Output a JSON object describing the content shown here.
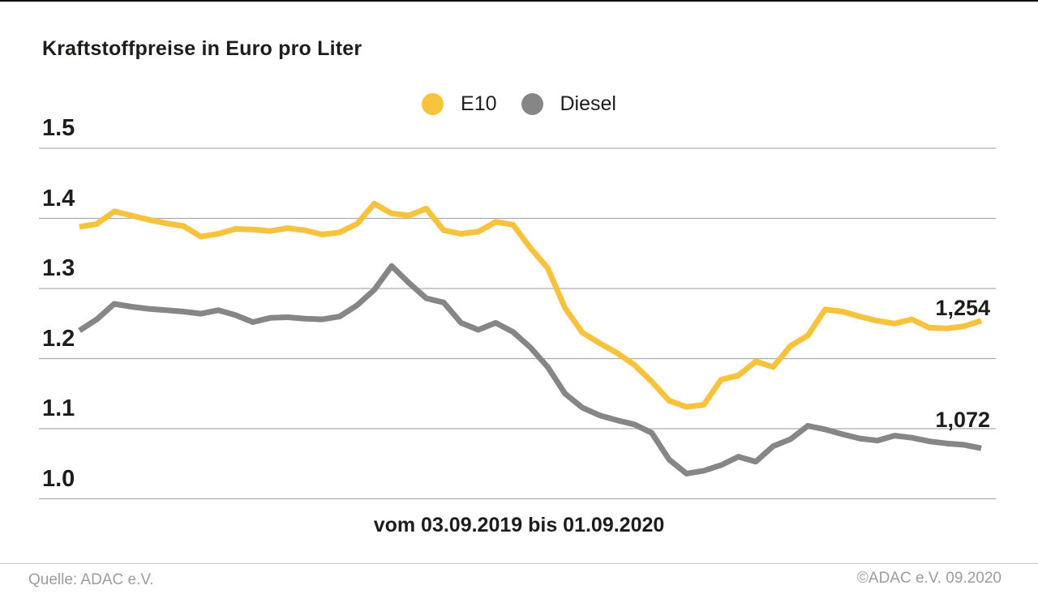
{
  "header": {
    "title": "Kraftstoffpreise in Euro pro Liter"
  },
  "legend": {
    "items": [
      {
        "label": "E10",
        "color": "#F7C23C"
      },
      {
        "label": "Diesel",
        "color": "#868686"
      }
    ]
  },
  "chart_data": {
    "type": "line",
    "title": "Kraftstoffpreise in Euro pro Liter",
    "x_caption": "vom 03.09.2019 bis 01.09.2020",
    "ylabel": "Euro pro Liter",
    "ylim": [
      0.95,
      1.55
    ],
    "grid": true,
    "legend_position": "top-center",
    "yticks": [
      {
        "label": "1.5",
        "value": 1.5
      },
      {
        "label": "1.4",
        "value": 1.4
      },
      {
        "label": "1.3",
        "value": 1.3
      },
      {
        "label": "1.2",
        "value": 1.2
      },
      {
        "label": "1.1",
        "value": 1.1
      },
      {
        "label": "1.0",
        "value": 1.0
      }
    ],
    "series": [
      {
        "name": "E10",
        "color": "#F7C23C",
        "end_label": "1,254",
        "values": [
          1.388,
          1.392,
          1.41,
          1.404,
          1.398,
          1.393,
          1.389,
          1.374,
          1.378,
          1.385,
          1.384,
          1.382,
          1.386,
          1.383,
          1.377,
          1.38,
          1.392,
          1.421,
          1.407,
          1.404,
          1.414,
          1.383,
          1.378,
          1.381,
          1.395,
          1.391,
          1.358,
          1.329,
          1.272,
          1.237,
          1.222,
          1.208,
          1.191,
          1.167,
          1.14,
          1.131,
          1.134,
          1.17,
          1.176,
          1.196,
          1.188,
          1.218,
          1.233,
          1.27,
          1.267,
          1.26,
          1.254,
          1.25,
          1.256,
          1.244,
          1.243,
          1.246,
          1.254
        ]
      },
      {
        "name": "Diesel",
        "color": "#868686",
        "end_label": "1,072",
        "values": [
          1.24,
          1.256,
          1.278,
          1.274,
          1.271,
          1.269,
          1.267,
          1.264,
          1.269,
          1.262,
          1.252,
          1.258,
          1.259,
          1.257,
          1.256,
          1.26,
          1.276,
          1.298,
          1.332,
          1.308,
          1.286,
          1.28,
          1.251,
          1.241,
          1.251,
          1.238,
          1.216,
          1.188,
          1.15,
          1.13,
          1.119,
          1.112,
          1.106,
          1.094,
          1.056,
          1.036,
          1.04,
          1.048,
          1.06,
          1.053,
          1.075,
          1.085,
          1.104,
          1.099,
          1.092,
          1.086,
          1.083,
          1.09,
          1.087,
          1.082,
          1.079,
          1.077,
          1.072
        ]
      }
    ]
  },
  "footer": {
    "source": "Quelle: ADAC e.V.",
    "copyright": "©ADAC e.V. 09.2020"
  }
}
